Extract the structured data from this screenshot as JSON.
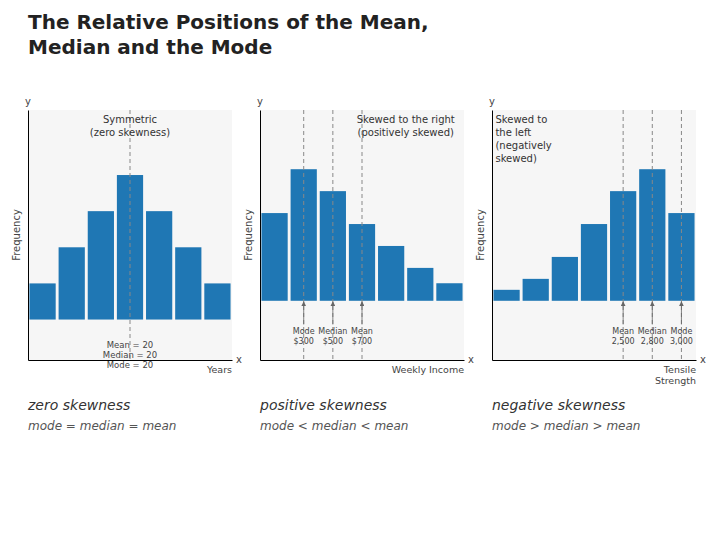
{
  "title": "The Relative Positions of the Mean,\nMedian and the Mode",
  "chart_data": [
    {
      "type": "bar",
      "title": "Symmetric\n(zero skewness)",
      "subtitle": "zero skewness",
      "caption": "mode = median = mean",
      "xlabel": "Years",
      "ylabel": "Frequency",
      "x_axis_letter": "x",
      "y_axis_letter": "y",
      "categories": [
        null,
        null,
        null,
        null,
        null,
        null,
        null
      ],
      "values": [
        1,
        2,
        3,
        4,
        3,
        2,
        1
      ],
      "ylim": [
        -1.12,
        5.8
      ],
      "tick_labels": false,
      "vlines": [
        3
      ],
      "annotations": [
        "Mean = 20",
        "Median = 20",
        "Mode = 20"
      ]
    },
    {
      "type": "bar",
      "title": "Skewed to the right\n(positively skewed)",
      "subtitle": "positive skewness",
      "caption": "mode < median < mean",
      "xlabel": "Weekly Income",
      "ylabel": "Frequency",
      "x_axis_letter": "x",
      "y_axis_letter": "y",
      "categories": [
        null,
        null,
        null,
        null,
        null,
        null,
        null
      ],
      "values": [
        4,
        6,
        5,
        3.5,
        2.5,
        1.5,
        0.8
      ],
      "ylim": [
        -2.7,
        8.7
      ],
      "tick_labels": false,
      "vlines": [
        1,
        2,
        3
      ],
      "annotations": [
        "Mode\n$300",
        "Median\n$500",
        "Mean\n$700"
      ]
    },
    {
      "type": "bar",
      "title": "Skewed to\nthe left\n(negatively\nskewed)",
      "subtitle": "negative skewness",
      "caption": "mode > median > mean",
      "xlabel": "Tensile\nStrength",
      "ylabel": "Frequency",
      "x_axis_letter": "x",
      "y_axis_letter": "y",
      "categories": [
        null,
        null,
        null,
        null,
        null,
        null,
        null
      ],
      "values": [
        0.5,
        1.0,
        2.0,
        3.5,
        5.0,
        6.0,
        4.0
      ],
      "ylim": [
        -2.7,
        8.7
      ],
      "tick_labels": false,
      "vlines": [
        4,
        5,
        6
      ],
      "annotations": [
        "Mean\n2,500",
        "Median\n2,800",
        "Mode\n3,000"
      ]
    }
  ]
}
